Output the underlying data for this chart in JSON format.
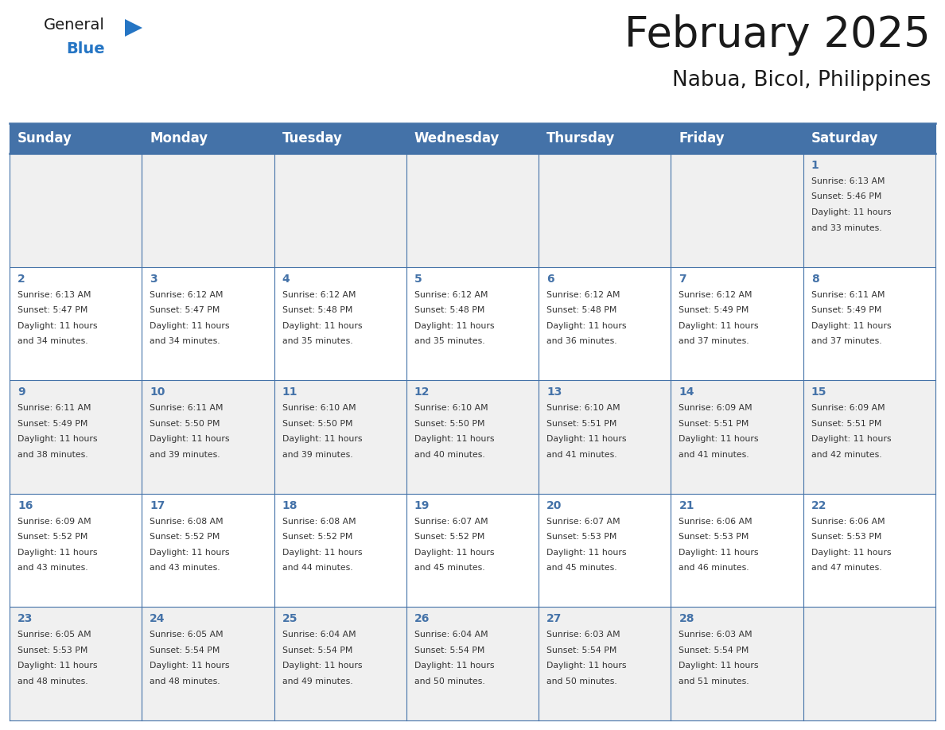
{
  "title": "February 2025",
  "subtitle": "Nabua, Bicol, Philippines",
  "header_bg": "#4472A8",
  "header_text": "#FFFFFF",
  "row_bg_odd": "#F0F0F0",
  "row_bg_even": "#FFFFFF",
  "cell_border": "#4472A8",
  "border_line": "#4472A8",
  "day_headers": [
    "Sunday",
    "Monday",
    "Tuesday",
    "Wednesday",
    "Thursday",
    "Friday",
    "Saturday"
  ],
  "days": [
    {
      "day": 1,
      "col": 6,
      "row": 0,
      "sunrise": "6:13 AM",
      "sunset": "5:46 PM",
      "daylight": "11 hours and 33 minutes"
    },
    {
      "day": 2,
      "col": 0,
      "row": 1,
      "sunrise": "6:13 AM",
      "sunset": "5:47 PM",
      "daylight": "11 hours and 34 minutes"
    },
    {
      "day": 3,
      "col": 1,
      "row": 1,
      "sunrise": "6:12 AM",
      "sunset": "5:47 PM",
      "daylight": "11 hours and 34 minutes"
    },
    {
      "day": 4,
      "col": 2,
      "row": 1,
      "sunrise": "6:12 AM",
      "sunset": "5:48 PM",
      "daylight": "11 hours and 35 minutes"
    },
    {
      "day": 5,
      "col": 3,
      "row": 1,
      "sunrise": "6:12 AM",
      "sunset": "5:48 PM",
      "daylight": "11 hours and 35 minutes"
    },
    {
      "day": 6,
      "col": 4,
      "row": 1,
      "sunrise": "6:12 AM",
      "sunset": "5:48 PM",
      "daylight": "11 hours and 36 minutes"
    },
    {
      "day": 7,
      "col": 5,
      "row": 1,
      "sunrise": "6:12 AM",
      "sunset": "5:49 PM",
      "daylight": "11 hours and 37 minutes"
    },
    {
      "day": 8,
      "col": 6,
      "row": 1,
      "sunrise": "6:11 AM",
      "sunset": "5:49 PM",
      "daylight": "11 hours and 37 minutes"
    },
    {
      "day": 9,
      "col": 0,
      "row": 2,
      "sunrise": "6:11 AM",
      "sunset": "5:49 PM",
      "daylight": "11 hours and 38 minutes"
    },
    {
      "day": 10,
      "col": 1,
      "row": 2,
      "sunrise": "6:11 AM",
      "sunset": "5:50 PM",
      "daylight": "11 hours and 39 minutes"
    },
    {
      "day": 11,
      "col": 2,
      "row": 2,
      "sunrise": "6:10 AM",
      "sunset": "5:50 PM",
      "daylight": "11 hours and 39 minutes"
    },
    {
      "day": 12,
      "col": 3,
      "row": 2,
      "sunrise": "6:10 AM",
      "sunset": "5:50 PM",
      "daylight": "11 hours and 40 minutes"
    },
    {
      "day": 13,
      "col": 4,
      "row": 2,
      "sunrise": "6:10 AM",
      "sunset": "5:51 PM",
      "daylight": "11 hours and 41 minutes"
    },
    {
      "day": 14,
      "col": 5,
      "row": 2,
      "sunrise": "6:09 AM",
      "sunset": "5:51 PM",
      "daylight": "11 hours and 41 minutes"
    },
    {
      "day": 15,
      "col": 6,
      "row": 2,
      "sunrise": "6:09 AM",
      "sunset": "5:51 PM",
      "daylight": "11 hours and 42 minutes"
    },
    {
      "day": 16,
      "col": 0,
      "row": 3,
      "sunrise": "6:09 AM",
      "sunset": "5:52 PM",
      "daylight": "11 hours and 43 minutes"
    },
    {
      "day": 17,
      "col": 1,
      "row": 3,
      "sunrise": "6:08 AM",
      "sunset": "5:52 PM",
      "daylight": "11 hours and 43 minutes"
    },
    {
      "day": 18,
      "col": 2,
      "row": 3,
      "sunrise": "6:08 AM",
      "sunset": "5:52 PM",
      "daylight": "11 hours and 44 minutes"
    },
    {
      "day": 19,
      "col": 3,
      "row": 3,
      "sunrise": "6:07 AM",
      "sunset": "5:52 PM",
      "daylight": "11 hours and 45 minutes"
    },
    {
      "day": 20,
      "col": 4,
      "row": 3,
      "sunrise": "6:07 AM",
      "sunset": "5:53 PM",
      "daylight": "11 hours and 45 minutes"
    },
    {
      "day": 21,
      "col": 5,
      "row": 3,
      "sunrise": "6:06 AM",
      "sunset": "5:53 PM",
      "daylight": "11 hours and 46 minutes"
    },
    {
      "day": 22,
      "col": 6,
      "row": 3,
      "sunrise": "6:06 AM",
      "sunset": "5:53 PM",
      "daylight": "11 hours and 47 minutes"
    },
    {
      "day": 23,
      "col": 0,
      "row": 4,
      "sunrise": "6:05 AM",
      "sunset": "5:53 PM",
      "daylight": "11 hours and 48 minutes"
    },
    {
      "day": 24,
      "col": 1,
      "row": 4,
      "sunrise": "6:05 AM",
      "sunset": "5:54 PM",
      "daylight": "11 hours and 48 minutes"
    },
    {
      "day": 25,
      "col": 2,
      "row": 4,
      "sunrise": "6:04 AM",
      "sunset": "5:54 PM",
      "daylight": "11 hours and 49 minutes"
    },
    {
      "day": 26,
      "col": 3,
      "row": 4,
      "sunrise": "6:04 AM",
      "sunset": "5:54 PM",
      "daylight": "11 hours and 50 minutes"
    },
    {
      "day": 27,
      "col": 4,
      "row": 4,
      "sunrise": "6:03 AM",
      "sunset": "5:54 PM",
      "daylight": "11 hours and 50 minutes"
    },
    {
      "day": 28,
      "col": 5,
      "row": 4,
      "sunrise": "6:03 AM",
      "sunset": "5:54 PM",
      "daylight": "11 hours and 51 minutes"
    }
  ],
  "num_rows": 5,
  "num_cols": 7,
  "logo_color_general": "#1a1a1a",
  "logo_color_blue": "#2575C4",
  "logo_triangle_color": "#2575C4",
  "title_fontsize": 38,
  "subtitle_fontsize": 19,
  "day_header_fontsize": 12,
  "day_num_fontsize": 10,
  "cell_text_fontsize": 7.8
}
